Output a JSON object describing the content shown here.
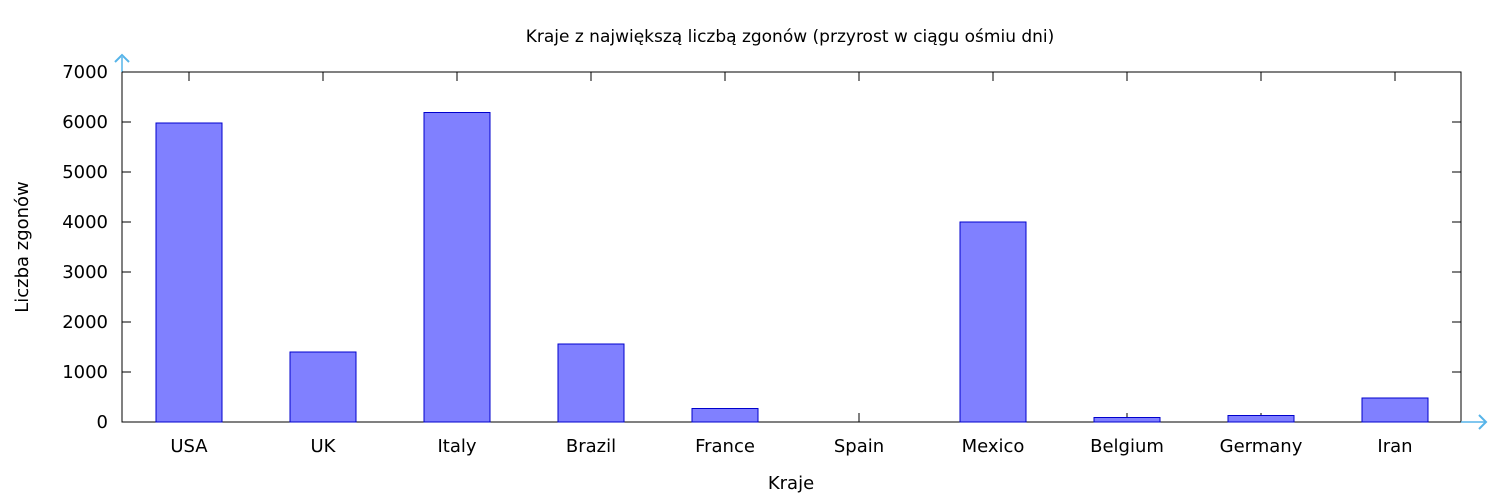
{
  "chart_data": {
    "type": "bar",
    "title": "Kraje z największą liczbą zgonów (przyrost w ciągu ośmiu dni)",
    "xlabel": "Kraje",
    "ylabel": "Liczba zgonów",
    "categories": [
      "USA",
      "UK",
      "Italy",
      "Brazil",
      "France",
      "Spain",
      "Mexico",
      "Belgium",
      "Germany",
      "Iran"
    ],
    "values": [
      5980,
      1400,
      6190,
      1560,
      270,
      0,
      4000,
      90,
      130,
      480
    ],
    "ylim": [
      0,
      7000
    ],
    "yticks": [
      0,
      1000,
      2000,
      3000,
      4000,
      5000,
      6000,
      7000
    ],
    "grid": false,
    "legend": "none",
    "colors": {
      "bar_fill": "#8080ff",
      "bar_stroke": "#0000cc",
      "axis_arrow": "#56b4e9",
      "frame": "#000000"
    }
  }
}
